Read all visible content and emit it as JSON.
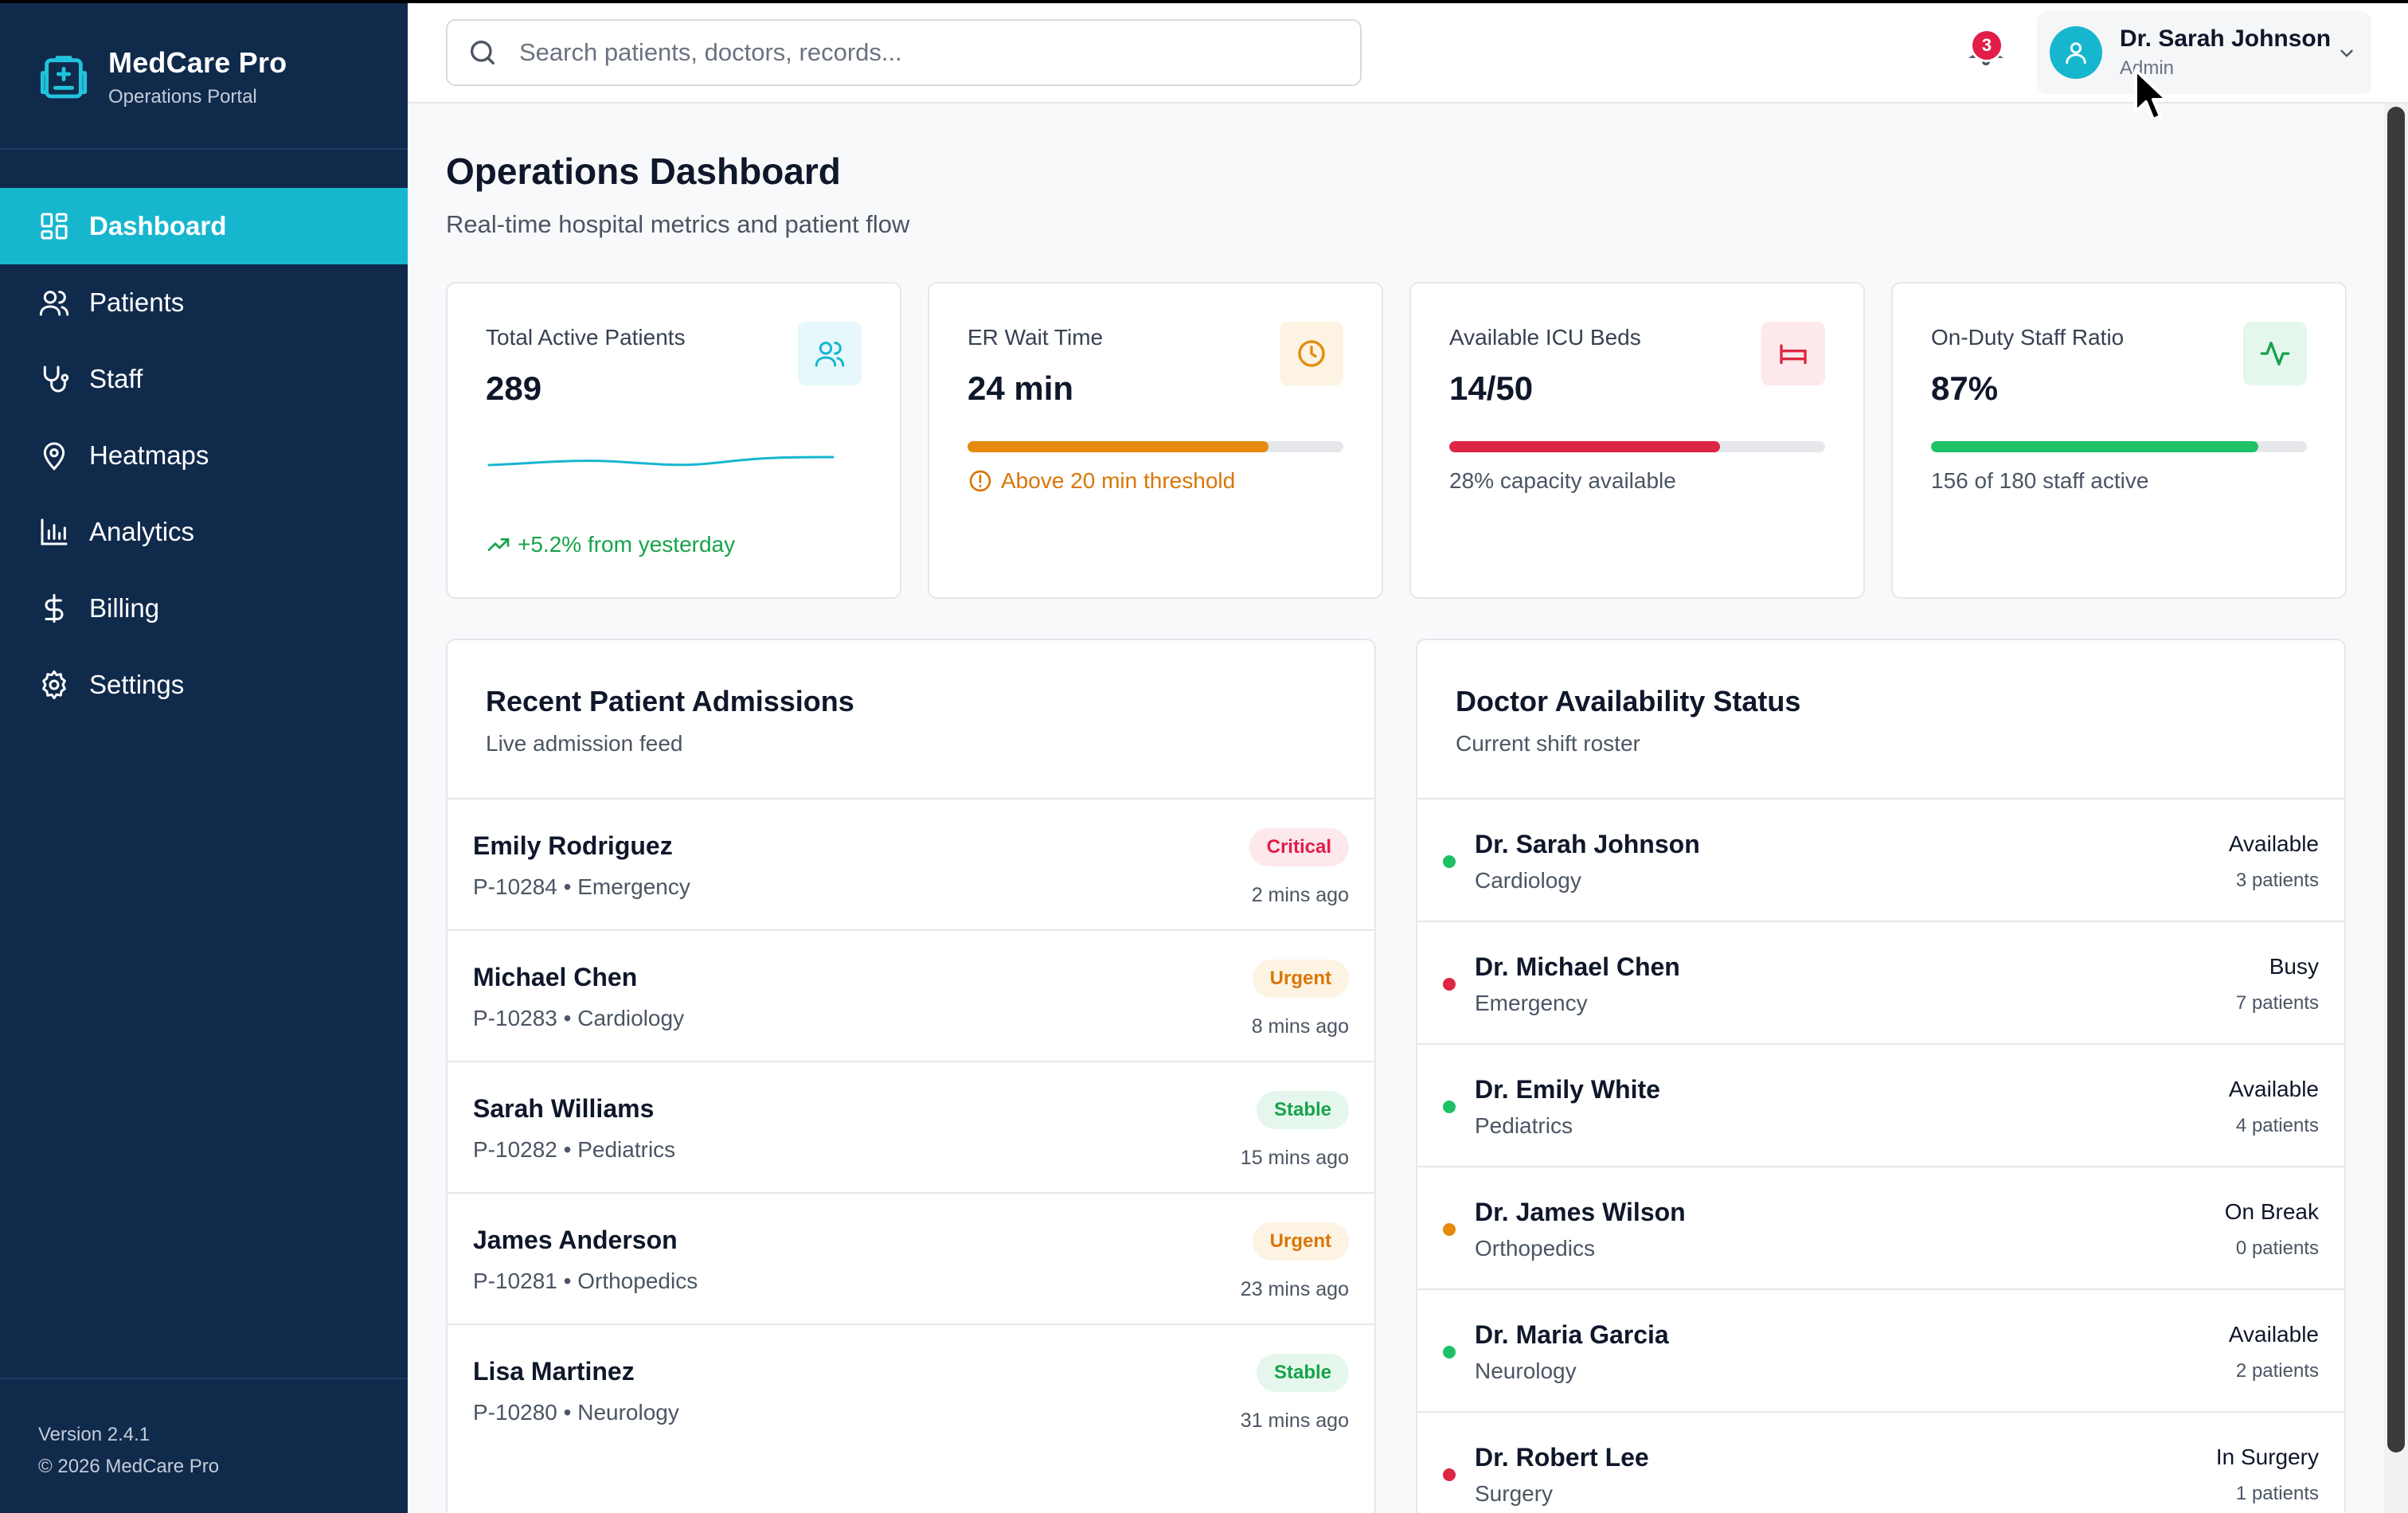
{
  "brand": {
    "name": "MedCare Pro",
    "subtitle": "Operations Portal",
    "icon": "hospital-clipboard-icon"
  },
  "sidebar": {
    "items": [
      {
        "label": "Dashboard",
        "icon": "grid-icon",
        "active": true
      },
      {
        "label": "Patients",
        "icon": "users-icon",
        "active": false
      },
      {
        "label": "Staff",
        "icon": "stethoscope-icon",
        "active": false
      },
      {
        "label": "Heatmaps",
        "icon": "map-pin-icon",
        "active": false
      },
      {
        "label": "Analytics",
        "icon": "bar-chart-icon",
        "active": false
      },
      {
        "label": "Billing",
        "icon": "dollar-icon",
        "active": false
      },
      {
        "label": "Settings",
        "icon": "gear-icon",
        "active": false
      }
    ],
    "version": "Version 2.4.1",
    "copyright": "© 2026 MedCare Pro"
  },
  "header": {
    "search_placeholder": "Search patients, doctors, records...",
    "notifications_count": "3",
    "user_name": "Dr. Sarah Johnson",
    "user_role": "Admin"
  },
  "page": {
    "title": "Operations Dashboard",
    "subtitle": "Real-time hospital metrics and patient flow"
  },
  "kpis": {
    "active_patients": {
      "label": "Total Active Patients",
      "value": "289",
      "trend": "+5.2% from yesterday"
    },
    "er_wait": {
      "label": "ER Wait Time",
      "value": "24 min",
      "note": "Above 20 min threshold",
      "progress": 0.8
    },
    "icu_beds": {
      "label": "Available ICU Beds",
      "value": "14/50",
      "note": "28% capacity available",
      "progress": 0.72
    },
    "staff_ratio": {
      "label": "On-Duty Staff Ratio",
      "value": "87%",
      "note": "156 of 180 staff active",
      "progress": 0.87
    }
  },
  "admissions": {
    "title": "Recent Patient Admissions",
    "subtitle": "Live admission feed",
    "rows": [
      {
        "name": "Emily Rodriguez",
        "meta": "P-10284 • Emergency",
        "status": "Critical",
        "time": "2 mins ago"
      },
      {
        "name": "Michael Chen",
        "meta": "P-10283 • Cardiology",
        "status": "Urgent",
        "time": "8 mins ago"
      },
      {
        "name": "Sarah Williams",
        "meta": "P-10282 • Pediatrics",
        "status": "Stable",
        "time": "15 mins ago"
      },
      {
        "name": "James Anderson",
        "meta": "P-10281 • Orthopedics",
        "status": "Urgent",
        "time": "23 mins ago"
      },
      {
        "name": "Lisa Martinez",
        "meta": "P-10280 • Neurology",
        "status": "Stable",
        "time": "31 mins ago"
      }
    ]
  },
  "doctors": {
    "title": "Doctor Availability Status",
    "subtitle": "Current shift roster",
    "rows": [
      {
        "name": "Dr. Sarah Johnson",
        "dept": "Cardiology",
        "status": "Available",
        "patients": "3 patients"
      },
      {
        "name": "Dr. Michael Chen",
        "dept": "Emergency",
        "status": "Busy",
        "patients": "7 patients"
      },
      {
        "name": "Dr. Emily White",
        "dept": "Pediatrics",
        "status": "Available",
        "patients": "4 patients"
      },
      {
        "name": "Dr. James Wilson",
        "dept": "Orthopedics",
        "status": "On Break",
        "patients": "0 patients"
      },
      {
        "name": "Dr. Maria Garcia",
        "dept": "Neurology",
        "status": "Available",
        "patients": "2 patients"
      },
      {
        "name": "Dr. Robert Lee",
        "dept": "Surgery",
        "status": "In Surgery",
        "patients": "1 patients"
      }
    ]
  },
  "colors": {
    "sidebar_bg": "#102a4c",
    "accent": "#17b6cf",
    "critical": "#e11d48",
    "urgent": "#d97706",
    "stable": "#16a34a",
    "er_bar": "#e58a0b",
    "icu_bar": "#dc2642",
    "staff_bar": "#1fc167"
  }
}
